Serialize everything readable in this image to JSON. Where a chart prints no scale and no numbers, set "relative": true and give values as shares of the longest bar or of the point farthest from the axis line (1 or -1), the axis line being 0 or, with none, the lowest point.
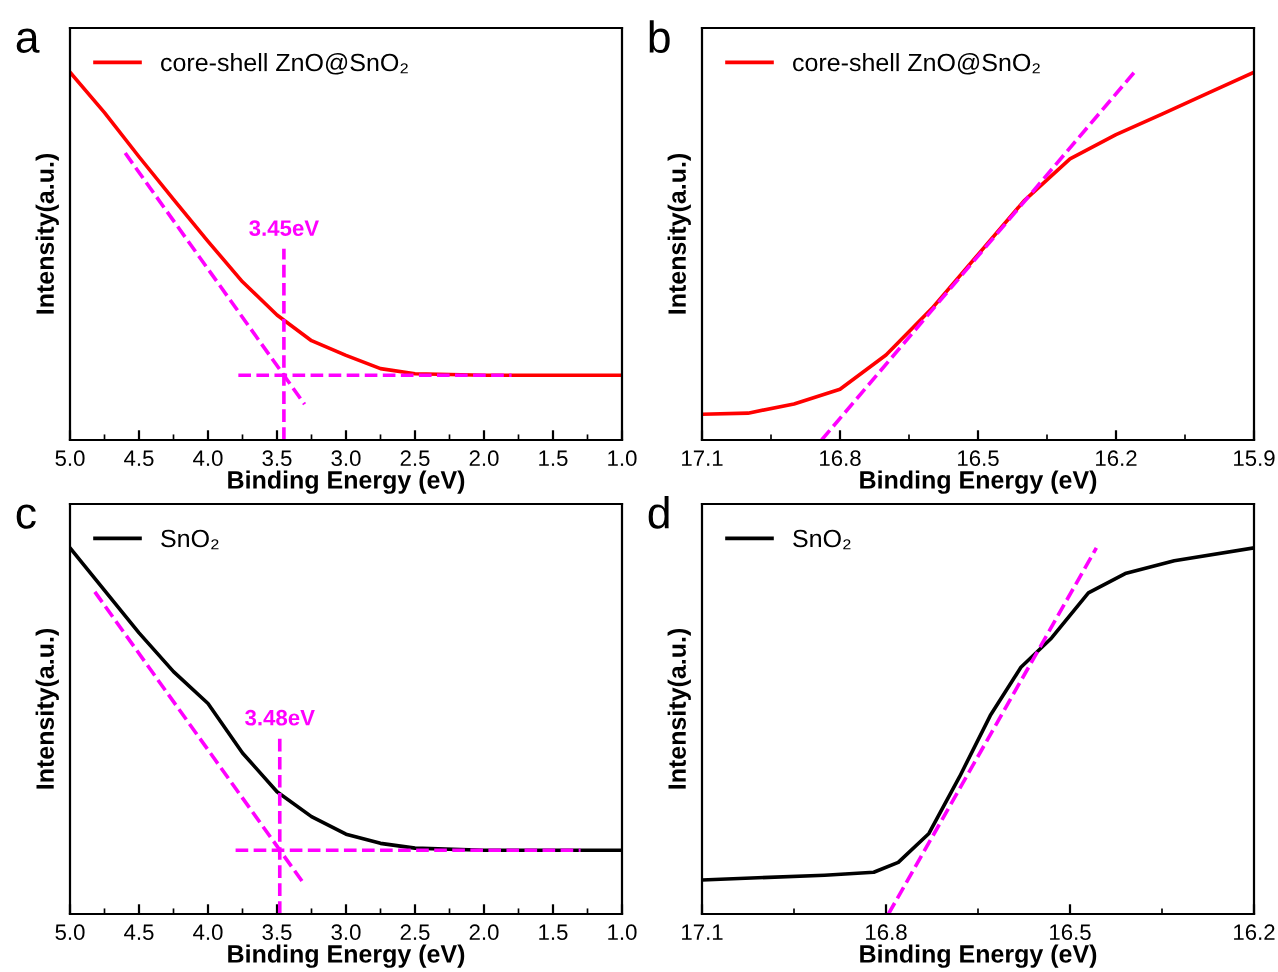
{
  "chart_data": [
    {
      "type": "line",
      "title": "a",
      "xlabel": "Binding Energy (eV)",
      "ylabel": "Intensity(a.u.)",
      "relative": true,
      "xlim": [
        5.0,
        1.0
      ],
      "xticks": [
        {
          "value": 5.0,
          "label": "5.0"
        },
        {
          "value": 4.5,
          "label": "4.5"
        },
        {
          "value": 4.0,
          "label": "4.0"
        },
        {
          "value": 3.5,
          "label": "3.5"
        },
        {
          "value": 3.0,
          "label": "3.0"
        },
        {
          "value": 2.5,
          "label": "2.5"
        },
        {
          "value": 2.0,
          "label": "2.0"
        },
        {
          "value": 1.5,
          "label": "1.5"
        },
        {
          "value": 1.0,
          "label": "1.0"
        }
      ],
      "legend": "top left",
      "grid": false,
      "series": [
        {
          "name": "core-shell ZnO@SnO₂",
          "color": "#ff0000",
          "line_style": "solid",
          "x": [
            5.0,
            4.75,
            4.5,
            4.25,
            4.0,
            3.75,
            3.5,
            3.25,
            3.0,
            2.75,
            2.5,
            2.0,
            1.5,
            1.0
          ],
          "values": [
            1.0,
            0.89,
            0.77,
            0.654,
            0.54,
            0.43,
            0.34,
            0.27,
            0.23,
            0.194,
            0.18,
            0.176,
            0.176,
            0.176
          ]
        },
        {
          "color": "#ff00ff",
          "line_style": "dashed",
          "x": [
            4.6,
            3.3
          ],
          "values": [
            0.78,
            0.097
          ]
        },
        {
          "color": "#ff00ff",
          "line_style": "dashed",
          "x": [
            3.78,
            1.8
          ],
          "values": [
            0.176,
            0.176
          ]
        },
        {
          "color": "#ff00ff",
          "line_style": "dashed",
          "x": [
            3.45,
            3.45
          ],
          "values": [
            0,
            0.52
          ]
        }
      ],
      "annotations": [
        "3.45eV"
      ]
    },
    {
      "type": "line",
      "title": "b",
      "xlabel": "Binding Energy (eV)",
      "ylabel": "Intensity(a.u.)",
      "relative": true,
      "xlim": [
        17.1,
        15.9
      ],
      "xticks": [
        17.1,
        16.8,
        16.5,
        16.2,
        15.9
      ],
      "legend": "top left",
      "grid": false,
      "series": [
        {
          "name": "core-shell ZnO@SnO₂",
          "color": "#ff0000",
          "line_style": "solid",
          "x": [
            17.1,
            17.0,
            16.9,
            16.8,
            16.7,
            16.6,
            16.5,
            16.4,
            16.3,
            16.2,
            16.1,
            16.0,
            15.9
          ],
          "values": [
            0.07,
            0.073,
            0.098,
            0.138,
            0.231,
            0.358,
            0.504,
            0.65,
            0.764,
            0.83,
            0.886,
            0.943,
            1.0
          ]
        },
        {
          "color": "#ff00ff",
          "line_style": "dashed",
          "x": [
            16.84,
            16.16
          ],
          "values": [
            0,
            1.0
          ]
        }
      ]
    },
    {
      "type": "line",
      "title": "c",
      "xlabel": "Binding Energy (eV)",
      "ylabel": "Intensity(a.u.)",
      "relative": true,
      "xlim": [
        5.0,
        1.0
      ],
      "xticks": [
        {
          "value": 5.0,
          "label": "5.0"
        },
        {
          "value": 4.5,
          "label": "4.5"
        },
        {
          "value": 4.0,
          "label": "4.0"
        },
        {
          "value": 3.5,
          "label": "3.5"
        },
        {
          "value": 3.0,
          "label": "3.0"
        },
        {
          "value": 2.5,
          "label": "2.5"
        },
        {
          "value": 2.0,
          "label": "2.0"
        },
        {
          "value": 1.5,
          "label": "1.5"
        },
        {
          "value": 1.0,
          "label": "1.0"
        }
      ],
      "legend": "top left",
      "grid": false,
      "series": [
        {
          "name": "SnO₂",
          "color": "#000000",
          "line_style": "solid",
          "x": [
            5.0,
            4.75,
            4.5,
            4.25,
            4.0,
            3.75,
            3.5,
            3.25,
            3.0,
            2.75,
            2.5,
            2.0,
            1.5,
            1.0
          ],
          "values": [
            1.0,
            0.884,
            0.768,
            0.662,
            0.575,
            0.44,
            0.334,
            0.266,
            0.218,
            0.193,
            0.18,
            0.174,
            0.174,
            0.174
          ]
        },
        {
          "color": "#ff00ff",
          "line_style": "dashed",
          "x": [
            4.82,
            3.3
          ],
          "values": [
            0.88,
            0.08
          ]
        },
        {
          "color": "#ff00ff",
          "line_style": "dashed",
          "x": [
            3.8,
            1.3
          ],
          "values": [
            0.174,
            0.174
          ]
        },
        {
          "color": "#ff00ff",
          "line_style": "dashed",
          "x": [
            3.48,
            3.48
          ],
          "values": [
            0,
            0.48
          ]
        }
      ],
      "annotations": [
        "3.48eV"
      ]
    },
    {
      "type": "line",
      "title": "d",
      "xlabel": "Binding Energy (eV)",
      "ylabel": "Intensity(a.u.)",
      "relative": true,
      "xlim": [
        17.1,
        16.2
      ],
      "xticks": [
        17.1,
        16.8,
        16.5,
        16.2
      ],
      "legend": "top left",
      "grid": false,
      "series": [
        {
          "name": "SnO₂",
          "color": "#000000",
          "line_style": "solid",
          "x": [
            17.1,
            16.9,
            16.82,
            16.78,
            16.73,
            16.68,
            16.63,
            16.58,
            16.53,
            16.47,
            16.41,
            16.33,
            16.2
          ],
          "values": [
            0.093,
            0.106,
            0.114,
            0.141,
            0.22,
            0.375,
            0.542,
            0.674,
            0.754,
            0.877,
            0.93,
            0.965,
            1.0
          ]
        },
        {
          "color": "#ff00ff",
          "line_style": "dashed",
          "x": [
            16.796,
            16.457
          ],
          "values": [
            0,
            1.0
          ]
        }
      ]
    }
  ]
}
